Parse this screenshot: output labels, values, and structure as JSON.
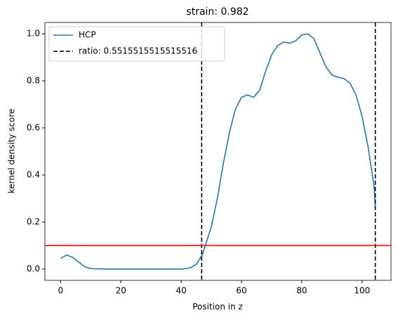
{
  "chart_data": {
    "type": "line",
    "title": "strain: 0.982",
    "xlabel": "Position in z",
    "ylabel": "kernel density score",
    "x": [
      0,
      2,
      4,
      6,
      8,
      10,
      15,
      20,
      30,
      40,
      43,
      45,
      47,
      48,
      50,
      52,
      54,
      56,
      58,
      60,
      62,
      64,
      66,
      68,
      70,
      72,
      74,
      76,
      78,
      80,
      82,
      84,
      86,
      88,
      90,
      92,
      94,
      96,
      98,
      100,
      102,
      104,
      104.4
    ],
    "series": [
      {
        "name": "HCP",
        "color": "#1f77b4",
        "values": [
          0.045,
          0.06,
          0.05,
          0.03,
          0.01,
          0.002,
          0,
          0,
          0,
          0,
          0.005,
          0.02,
          0.06,
          0.1,
          0.18,
          0.3,
          0.45,
          0.58,
          0.68,
          0.73,
          0.74,
          0.73,
          0.76,
          0.84,
          0.91,
          0.95,
          0.965,
          0.96,
          0.97,
          0.995,
          1.0,
          0.98,
          0.92,
          0.86,
          0.825,
          0.815,
          0.81,
          0.79,
          0.74,
          0.65,
          0.52,
          0.35,
          0.26
        ]
      }
    ],
    "vlines": {
      "name": "ratio: 0.5515515515515516",
      "color": "#000000",
      "values": [
        46.8,
        104.4
      ]
    },
    "hline": {
      "value": 0.1,
      "color": "#ff0000"
    },
    "xlim": [
      -5.2,
      109.6
    ],
    "ylim": [
      -0.048,
      1.048
    ],
    "xticks": [
      0,
      20,
      40,
      60,
      80,
      100
    ],
    "yticks": [
      {
        "value": 0,
        "label": "0.0"
      },
      0.2,
      0.4,
      0.6,
      0.8,
      {
        "value": 1,
        "label": "1.0"
      }
    ],
    "legend": "upper left"
  }
}
